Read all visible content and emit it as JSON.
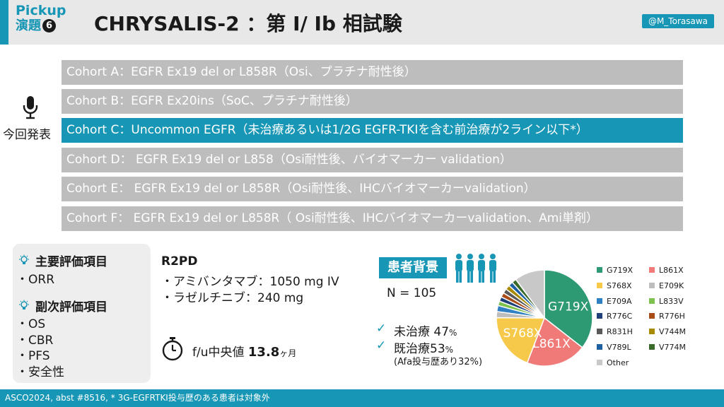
{
  "header": {
    "badge_line1": "Pickup",
    "badge_line2": "演題",
    "badge_number": "6",
    "title": "CHRYSALIS-2 ：第 I/ Ib 相試験",
    "handle": "@M_Torasawa"
  },
  "cohorts": [
    {
      "label": "Cohort A：EGFR Ex19 del or L858R（Osi、プラチナ耐性後）",
      "active": false
    },
    {
      "label": "Cohort B：EGFR Ex20ins（SoC、プラチナ耐性後）",
      "active": false
    },
    {
      "label": "Cohort C：Uncommon EGFR（未治療あるいは1/2G EGFR-TKIを含む前治療が2ライン以下*）",
      "active": true
    },
    {
      "label": "Cohort D： EGFR Ex19 del or L858（Osi耐性後、バイオマーカー validation）",
      "active": false
    },
    {
      "label": "Cohort E： EGFR Ex19 del or L858R（Osi耐性後、IHCバイオマーカーvalidation）",
      "active": false
    },
    {
      "label": "Cohort F： EGFR Ex19 del or L858R（ Osi耐性後、IHCバイオマーカーvalidation、Ami単剤）",
      "active": false
    }
  ],
  "present_label": "今回発表",
  "endpoints": {
    "primary_heading": "主要評価項目",
    "primary_items": [
      "・ORR"
    ],
    "secondary_heading": "副次評価項目",
    "secondary_items": [
      "・OS",
      "・CBR",
      "・PFS",
      "・安全性"
    ]
  },
  "r2pd": {
    "title": "R2PD",
    "items": [
      "・アミバンタマブ：1050 mg IV",
      "・ラゼルチニブ：240 mg"
    ]
  },
  "followup": {
    "prefix": "f/u中央値 ",
    "value": "13.8",
    "unit": "ヶ月"
  },
  "background": {
    "label": "患者背景",
    "n": "N = 105",
    "untreated_label": "未治療 47",
    "untreated_unit": "%",
    "pretreated_label": "既治療53",
    "pretreated_unit": "%",
    "afa_note": "(Afa投与歴あり32%)"
  },
  "chart_data": {
    "type": "pie",
    "slices": [
      {
        "label": "G719X",
        "value": 35,
        "color": "#2e9a74",
        "shown_label": "G719X"
      },
      {
        "label": "L861X",
        "value": 20,
        "color": "#ef7a78",
        "shown_label": "L861X"
      },
      {
        "label": "S768X",
        "value": 19,
        "color": "#f6c94a",
        "shown_label": "S768X"
      },
      {
        "label": "E709K",
        "value": 2,
        "color": "#bdbdbd",
        "shown_label": ""
      },
      {
        "label": "E709A",
        "value": 2,
        "color": "#2f7fc3",
        "shown_label": ""
      },
      {
        "label": "L833V",
        "value": 1.5,
        "color": "#7dc14f",
        "shown_label": ""
      },
      {
        "label": "R776C",
        "value": 1.5,
        "color": "#1f3f78",
        "shown_label": ""
      },
      {
        "label": "R776H",
        "value": 1.5,
        "color": "#a94b16",
        "shown_label": ""
      },
      {
        "label": "R831H",
        "value": 1.5,
        "color": "#595959",
        "shown_label": ""
      },
      {
        "label": "V744M",
        "value": 1.5,
        "color": "#a88a00",
        "shown_label": ""
      },
      {
        "label": "V789L",
        "value": 1.5,
        "color": "#1d5fa3",
        "shown_label": ""
      },
      {
        "label": "V774M",
        "value": 1.5,
        "color": "#3a6a2a",
        "shown_label": ""
      },
      {
        "label": "Other",
        "value": 10,
        "color": "#c8c8c8",
        "shown_label": ""
      }
    ]
  },
  "footer": "ASCO2024, abst #8516, * 3G-EGFRTKI投与歴のある患者は対象外"
}
